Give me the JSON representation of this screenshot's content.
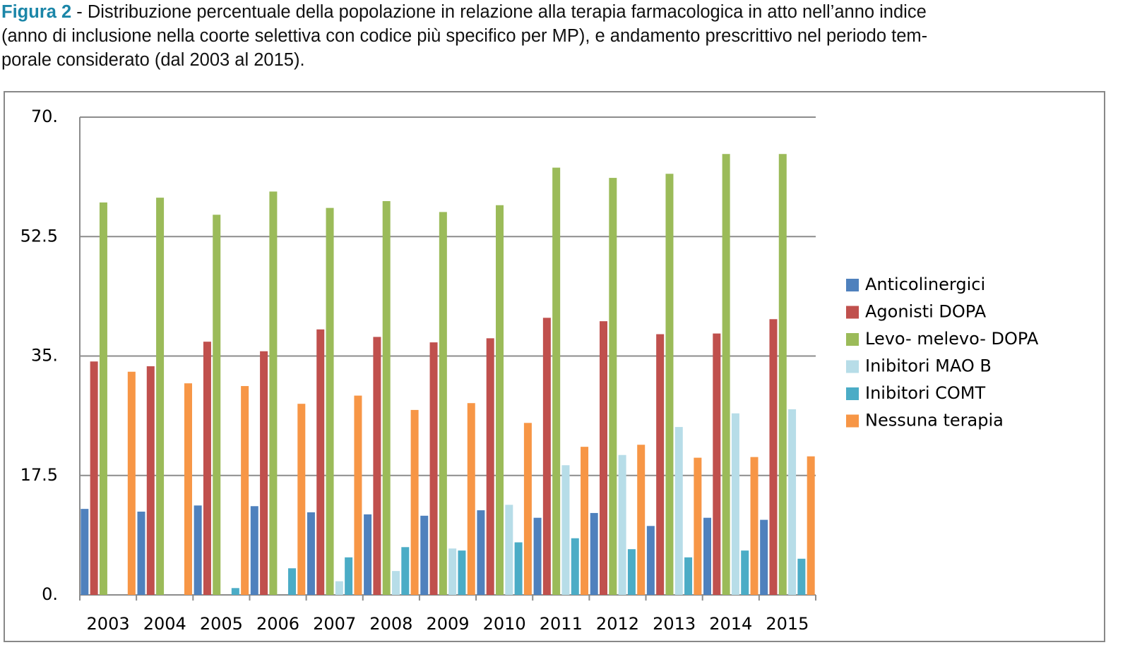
{
  "caption": {
    "label": "Figura 2",
    "lines": [
      " - Distribuzione percentuale della popolazione in relazione alla terapia farmacologica in atto nell’anno indice",
      "(anno di inclusione nella coorte selettiva con codice più specifico per MP), e andamento prescrittivo nel periodo tem-",
      "porale considerato (dal 2003 al 2015)."
    ]
  },
  "chart_data": {
    "type": "bar",
    "categories": [
      "2003",
      "2004",
      "2005",
      "2006",
      "2007",
      "2008",
      "2009",
      "2010",
      "2011",
      "2012",
      "2013",
      "2014",
      "2015"
    ],
    "series": [
      {
        "name": "Anticolinergici",
        "color": "#4f81bd",
        "values": [
          12.6,
          12.2,
          13.1,
          13.0,
          12.1,
          11.8,
          11.6,
          12.4,
          11.3,
          12.0,
          10.1,
          11.3,
          11.0
        ]
      },
      {
        "name": "Agonisti DOPA",
        "color": "#c0504d",
        "values": [
          34.2,
          33.5,
          37.1,
          35.7,
          38.9,
          37.8,
          37.0,
          37.6,
          40.6,
          40.1,
          38.2,
          38.3,
          40.4
        ]
      },
      {
        "name": "Levo- melevo- DOPA",
        "color": "#9bbb59",
        "values": [
          57.5,
          58.2,
          55.7,
          59.1,
          56.7,
          57.7,
          56.1,
          57.1,
          62.6,
          61.1,
          61.7,
          64.6,
          64.6
        ]
      },
      {
        "name": "Inibitori MAO B",
        "color": "#b7dde8",
        "values": [
          null,
          null,
          null,
          null,
          2.0,
          3.5,
          6.8,
          13.2,
          19.0,
          20.5,
          24.6,
          26.6,
          27.2
        ]
      },
      {
        "name": "Inibitori COMT",
        "color": "#4bacc6",
        "values": [
          null,
          null,
          1.0,
          3.9,
          5.5,
          7.0,
          6.5,
          7.7,
          8.3,
          6.7,
          5.5,
          6.5,
          5.3
        ]
      },
      {
        "name": "Nessuna terapia",
        "color": "#f79646",
        "values": [
          32.7,
          31.0,
          30.6,
          28.0,
          29.2,
          27.1,
          28.1,
          25.2,
          21.7,
          22.0,
          20.1,
          20.2,
          20.3
        ]
      }
    ],
    "ylim": [
      0,
      70
    ],
    "yticks": [
      {
        "value": 0,
        "label": "0."
      },
      17.5,
      {
        "value": 35,
        "label": "35."
      },
      52.5,
      {
        "value": 70,
        "label": "70."
      }
    ],
    "grid": true,
    "legend": "right"
  }
}
